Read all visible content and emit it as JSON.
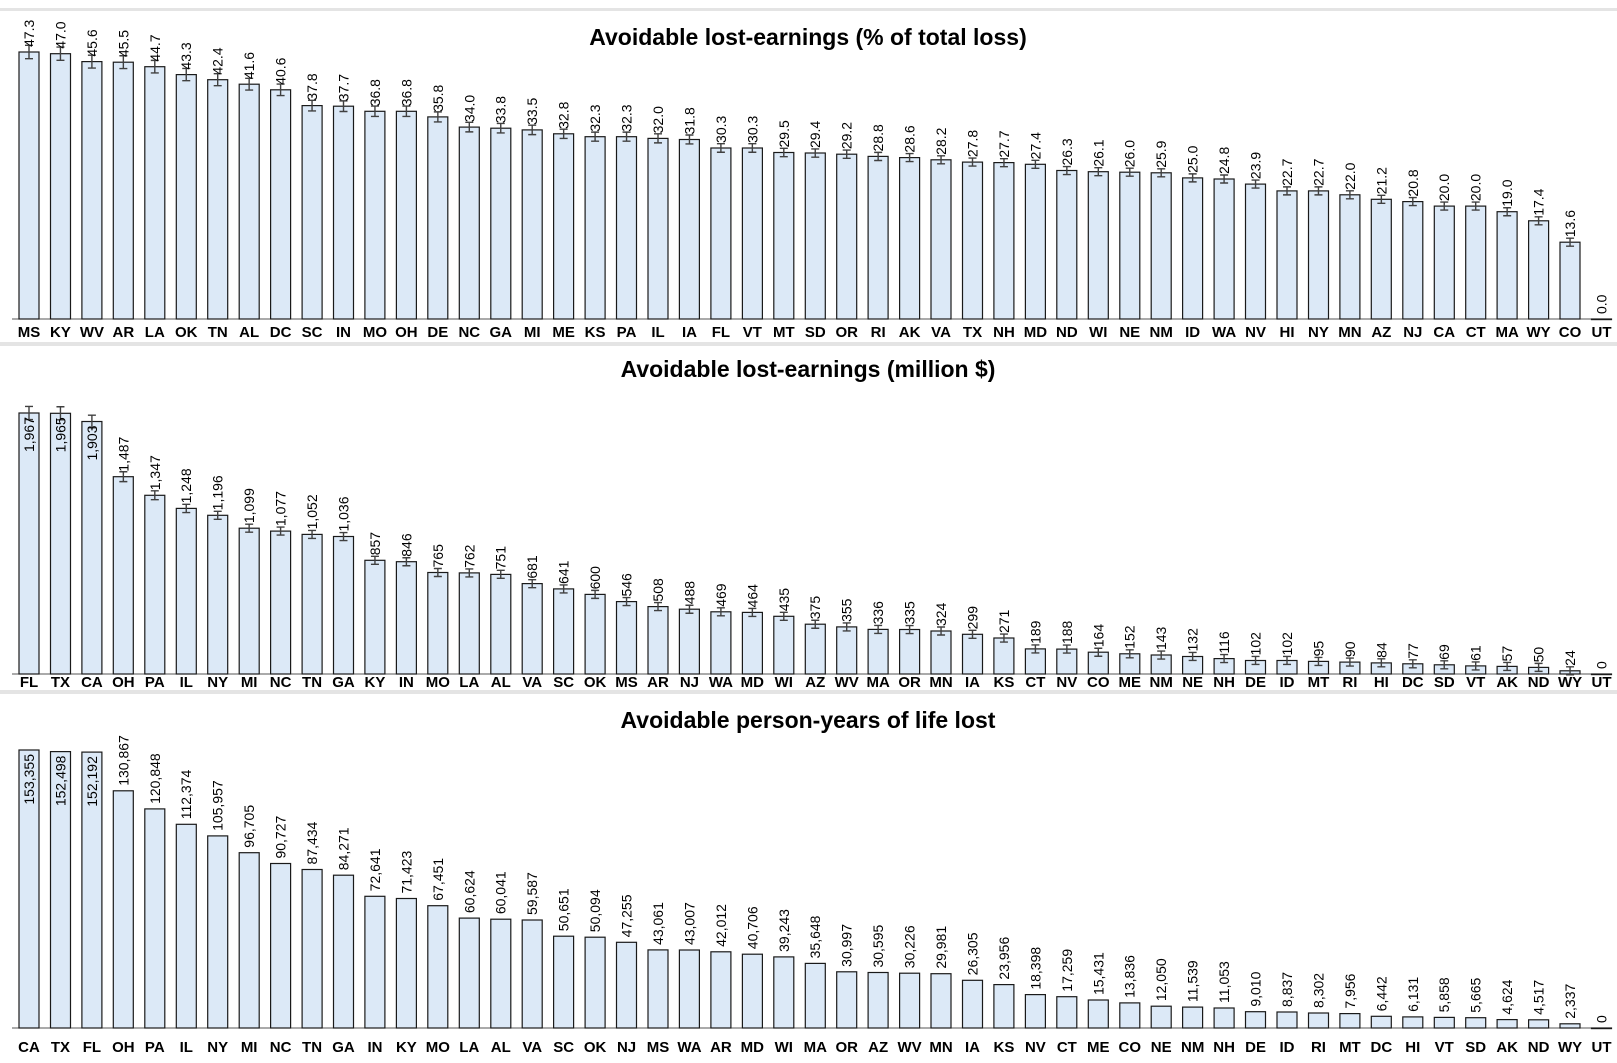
{
  "chart_data": [
    {
      "type": "bar",
      "title": "Avoidable lost-earnings (% of total loss)",
      "error_bars": true,
      "categories": [
        "MS",
        "KY",
        "WV",
        "AR",
        "LA",
        "OK",
        "TN",
        "AL",
        "DC",
        "SC",
        "IN",
        "MO",
        "OH",
        "DE",
        "NC",
        "GA",
        "MI",
        "ME",
        "KS",
        "PA",
        "IL",
        "IA",
        "FL",
        "VT",
        "MT",
        "SD",
        "OR",
        "RI",
        "AK",
        "VA",
        "TX",
        "NH",
        "MD",
        "ND",
        "WI",
        "NE",
        "NM",
        "ID",
        "WA",
        "NV",
        "HI",
        "NY",
        "MN",
        "AZ",
        "NJ",
        "CA",
        "CT",
        "MA",
        "WY",
        "CO",
        "UT"
      ],
      "values": [
        47.3,
        47.0,
        45.6,
        45.5,
        44.7,
        43.3,
        42.4,
        41.6,
        40.6,
        37.8,
        37.7,
        36.8,
        36.8,
        35.8,
        34.0,
        33.8,
        33.5,
        32.8,
        32.3,
        32.3,
        32.0,
        31.8,
        30.3,
        30.3,
        29.5,
        29.4,
        29.2,
        28.8,
        28.6,
        28.2,
        27.8,
        27.7,
        27.4,
        26.3,
        26.1,
        26.0,
        25.9,
        25.0,
        24.8,
        23.9,
        22.7,
        22.7,
        22.0,
        21.2,
        20.8,
        20.0,
        20.0,
        19.0,
        17.4,
        13.6,
        0.0
      ],
      "labels": [
        "47.3",
        "47.0",
        "45.6",
        "45.5",
        "44.7",
        "43.3",
        "42.4",
        "41.6",
        "40.6",
        "37.8",
        "37.7",
        "36.8",
        "36.8",
        "35.8",
        "34.0",
        "33.8",
        "33.5",
        "32.8",
        "32.3",
        "32.3",
        "32.0",
        "31.8",
        "30.3",
        "30.3",
        "29.5",
        "29.4",
        "29.2",
        "28.8",
        "28.6",
        "28.2",
        "27.8",
        "27.7",
        "27.4",
        "26.3",
        "26.1",
        "26.0",
        "25.9",
        "25.0",
        "24.8",
        "23.9",
        "22.7",
        "22.7",
        "22.0",
        "21.2",
        "20.8",
        "20.0",
        "20.0",
        "19.0",
        "17.4",
        "13.6",
        "0.0"
      ],
      "ylim": [
        0,
        47.3
      ]
    },
    {
      "type": "bar",
      "title": "Avoidable lost-earnings (million $)",
      "error_bars": true,
      "categories": [
        "FL",
        "TX",
        "CA",
        "OH",
        "PA",
        "IL",
        "NY",
        "MI",
        "NC",
        "TN",
        "GA",
        "KY",
        "IN",
        "MO",
        "LA",
        "AL",
        "VA",
        "SC",
        "OK",
        "MS",
        "AR",
        "NJ",
        "WA",
        "MD",
        "WI",
        "AZ",
        "WV",
        "MA",
        "OR",
        "MN",
        "IA",
        "KS",
        "CT",
        "NV",
        "CO",
        "ME",
        "NM",
        "NE",
        "NH",
        "DE",
        "ID",
        "MT",
        "RI",
        "HI",
        "DC",
        "SD",
        "VT",
        "AK",
        "ND",
        "WY",
        "UT"
      ],
      "values": [
        1967,
        1965,
        1903,
        1487,
        1347,
        1248,
        1196,
        1099,
        1077,
        1052,
        1036,
        857,
        846,
        765,
        762,
        751,
        681,
        641,
        600,
        546,
        508,
        488,
        469,
        464,
        435,
        375,
        355,
        336,
        335,
        324,
        299,
        271,
        189,
        188,
        164,
        152,
        143,
        132,
        116,
        102,
        102,
        95,
        90,
        84,
        77,
        69,
        61,
        57,
        50,
        24,
        0
      ],
      "labels": [
        "1,967",
        "1,965",
        "1,903",
        "1,487",
        "1,347",
        "1,248",
        "1,196",
        "1,099",
        "1,077",
        "1,052",
        "1,036",
        "857",
        "846",
        "765",
        "762",
        "751",
        "681",
        "641",
        "600",
        "546",
        "508",
        "488",
        "469",
        "464",
        "435",
        "375",
        "355",
        "336",
        "335",
        "324",
        "299",
        "271",
        "189",
        "188",
        "164",
        "152",
        "143",
        "132",
        "116",
        "102",
        "102",
        "95",
        "90",
        "84",
        "77",
        "69",
        "61",
        "57",
        "50",
        "24",
        "0"
      ],
      "ylim": [
        0,
        1967
      ]
    },
    {
      "type": "bar",
      "title": "Avoidable person-years of life lost",
      "error_bars": false,
      "categories": [
        "CA",
        "TX",
        "FL",
        "OH",
        "PA",
        "IL",
        "NY",
        "MI",
        "NC",
        "TN",
        "GA",
        "IN",
        "KY",
        "MO",
        "LA",
        "AL",
        "VA",
        "SC",
        "OK",
        "NJ",
        "MS",
        "WA",
        "AR",
        "MD",
        "WI",
        "MA",
        "OR",
        "AZ",
        "WV",
        "MN",
        "IA",
        "KS",
        "NV",
        "CT",
        "ME",
        "CO",
        "NE",
        "NM",
        "NH",
        "DE",
        "ID",
        "RI",
        "MT",
        "DC",
        "HI",
        "VT",
        "SD",
        "AK",
        "ND",
        "WY",
        "UT"
      ],
      "values": [
        153355,
        152498,
        152192,
        130867,
        120848,
        112374,
        105957,
        96705,
        90727,
        87434,
        84271,
        72641,
        71423,
        67451,
        60624,
        60041,
        59587,
        50651,
        50094,
        47255,
        43061,
        43007,
        42012,
        40706,
        39243,
        35648,
        30997,
        30595,
        30226,
        29981,
        26305,
        23956,
        18398,
        17259,
        15431,
        13836,
        12050,
        11539,
        11053,
        9010,
        8837,
        8302,
        7956,
        6442,
        6131,
        5858,
        5665,
        4624,
        4517,
        2337,
        0
      ],
      "labels": [
        "153,355",
        "152,498",
        "152,192",
        "130,867",
        "120,848",
        "112,374",
        "105,957",
        "96,705",
        "90,727",
        "87,434",
        "84,271",
        "72,641",
        "71,423",
        "67,451",
        "60,624",
        "60,041",
        "59,587",
        "50,651",
        "50,094",
        "47,255",
        "43,061",
        "43,007",
        "42,012",
        "40,706",
        "39,243",
        "35,648",
        "30,997",
        "30,595",
        "30,226",
        "29,981",
        "26,305",
        "23,956",
        "18,398",
        "17,259",
        "15,431",
        "13,836",
        "12,050",
        "11,539",
        "11,053",
        "9,010",
        "8,837",
        "8,302",
        "7,956",
        "6,442",
        "6,131",
        "5,858",
        "5,665",
        "4,624",
        "4,517",
        "2,337",
        "0"
      ],
      "ylim": [
        0,
        153355
      ]
    }
  ]
}
